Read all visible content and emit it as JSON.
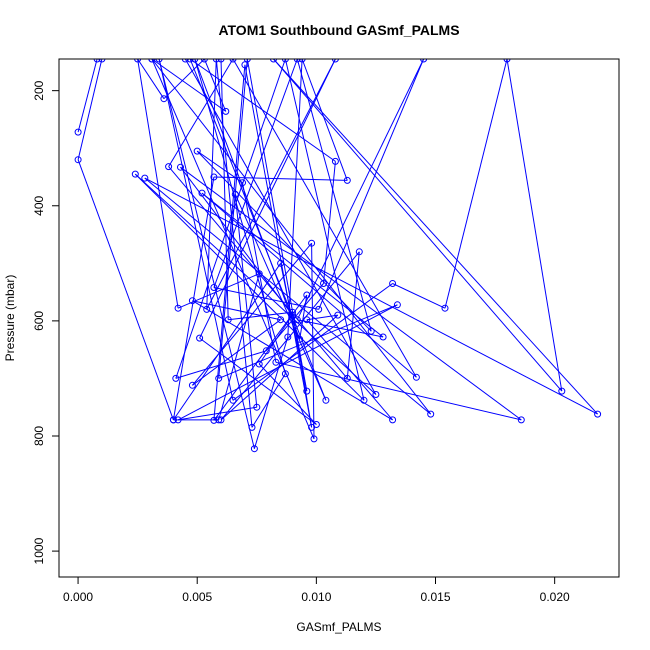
{
  "chart_data": {
    "type": "line",
    "title": "ATOM1 Southbound GASmf_PALMS",
    "xlabel": "GASmf_PALMS",
    "ylabel": "Pressure (mbar)",
    "xlim": [
      -0.0008,
      0.0227
    ],
    "ylim": [
      1045,
      145
    ],
    "y_reversed": true,
    "x_ticks": [
      {
        "value": 0.0,
        "label": "0.000"
      },
      {
        "value": 0.005,
        "label": "0.005"
      },
      {
        "value": 0.01,
        "label": "0.010"
      },
      {
        "value": 0.015,
        "label": "0.015"
      },
      {
        "value": 0.02,
        "label": "0.020"
      }
    ],
    "y_ticks": [
      {
        "value": 200,
        "label": "200"
      },
      {
        "value": 400,
        "label": "400"
      },
      {
        "value": 600,
        "label": "600"
      },
      {
        "value": 800,
        "label": "800"
      },
      {
        "value": 1000,
        "label": "1000"
      }
    ],
    "grid": false,
    "color": "#0000ff",
    "marker": "open-circle",
    "series": [
      {
        "points": [
          [
            0.0,
            272
          ],
          [
            0.0008,
            145
          ],
          [
            0.001,
            145
          ],
          [
            0.0,
            320
          ],
          [
            0.004,
            772
          ],
          [
            0.0059,
            772
          ],
          [
            0.0076,
            518
          ],
          [
            0.0042,
            578
          ],
          [
            0.0025,
            145
          ],
          [
            0.0036,
            214
          ],
          [
            0.0053,
            145
          ],
          [
            0.0062,
            236
          ],
          [
            0.0031,
            145
          ],
          [
            0.0045,
            145
          ],
          [
            0.0125,
            728
          ],
          [
            0.0024,
            345
          ],
          [
            0.012,
            738
          ],
          [
            0.0087,
            145
          ],
          [
            0.0041,
            700
          ],
          [
            0.0079,
            652
          ],
          [
            0.0103,
            535
          ],
          [
            0.0108,
            323
          ],
          [
            0.0047,
            145
          ],
          [
            0.0104,
            738
          ],
          [
            0.0066,
            380
          ],
          [
            0.0075,
            750
          ],
          [
            0.0042,
            772
          ],
          [
            0.0134,
            572
          ],
          [
            0.0059,
            700
          ],
          [
            0.0071,
            145
          ],
          [
            0.0096,
            722
          ],
          [
            0.0085,
            500
          ],
          [
            0.004,
            772
          ],
          [
            0.0057,
            350
          ],
          [
            0.0113,
            356
          ],
          [
            0.0094,
            145
          ],
          [
            0.0088,
            628
          ],
          [
            0.0074,
            822
          ],
          [
            0.0034,
            145
          ],
          [
            0.0065,
            738
          ],
          [
            0.0132,
            535
          ],
          [
            0.0154,
            578
          ],
          [
            0.018,
            145
          ],
          [
            0.0203,
            722
          ],
          [
            0.0082,
            145
          ],
          [
            0.0218,
            762
          ],
          [
            0.0028,
            352
          ],
          [
            0.0148,
            762
          ],
          [
            0.0031,
            145
          ],
          [
            0.0099,
            805
          ],
          [
            0.0098,
            465
          ],
          [
            0.0048,
            712
          ],
          [
            0.0085,
            598
          ],
          [
            0.0048,
            565
          ],
          [
            0.0132,
            772
          ],
          [
            0.0096,
            598
          ],
          [
            0.0109,
            590
          ],
          [
            0.006,
            772
          ],
          [
            0.0118,
            480
          ],
          [
            0.0113,
            700
          ],
          [
            0.0038,
            332
          ],
          [
            0.0065,
            145
          ],
          [
            0.0142,
            698
          ],
          [
            0.0052,
            378
          ],
          [
            0.0128,
            628
          ],
          [
            0.0092,
            598
          ],
          [
            0.0145,
            145
          ],
          [
            0.0101,
            580
          ],
          [
            0.0057,
            542
          ],
          [
            0.0092,
            145
          ],
          [
            0.0123,
            618
          ],
          [
            0.005,
            305
          ],
          [
            0.0069,
            360
          ],
          [
            0.0083,
            672
          ],
          [
            0.0186,
            772
          ],
          [
            0.0043,
            333
          ],
          [
            0.009,
            590
          ],
          [
            0.0076,
            675
          ],
          [
            0.01,
            780
          ],
          [
            0.0051,
            630
          ],
          [
            0.0108,
            145
          ],
          [
            0.0054,
            580
          ],
          [
            0.0058,
            145
          ],
          [
            0.0073,
            785
          ],
          [
            0.0087,
            692
          ],
          [
            0.0049,
            145
          ],
          [
            0.0093,
            632
          ],
          [
            0.0096,
            555
          ],
          [
            0.0057,
            773
          ],
          [
            0.007,
            155
          ],
          [
            0.0098,
            785
          ],
          [
            0.009,
            585
          ],
          [
            0.0063,
            598
          ],
          [
            0.006,
            145
          ]
        ]
      }
    ]
  }
}
